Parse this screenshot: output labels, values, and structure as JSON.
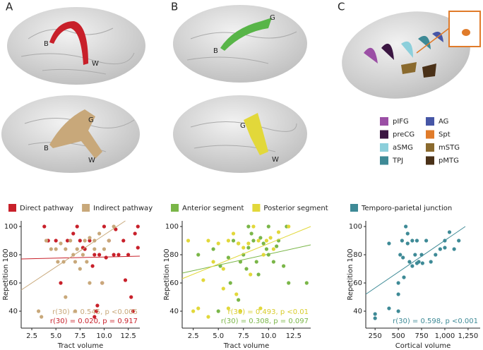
{
  "panels": {
    "letters": [
      "A",
      "B",
      "C"
    ],
    "brains": [
      {
        "labels": [
          "B",
          "W"
        ]
      },
      {
        "labels": [
          "G",
          "B",
          "W"
        ]
      },
      {
        "labels": [
          "B",
          "G"
        ]
      },
      {
        "labels": [
          "G",
          "W"
        ]
      }
    ],
    "regions": [
      {
        "label": "pIFG",
        "color": "#9b4fa5"
      },
      {
        "label": "preCG",
        "color": "#3b1642"
      },
      {
        "label": "aSMG",
        "color": "#8ccfdb"
      },
      {
        "label": "TPJ",
        "color": "#3e8a96"
      },
      {
        "label": "AG",
        "color": "#4656a6"
      },
      {
        "label": "Spt",
        "color": "#e07b2a"
      },
      {
        "label": "mSTG",
        "color": "#8a6a2e"
      },
      {
        "label": "pMTG",
        "color": "#4a3118"
      }
    ]
  },
  "chart_data": [
    {
      "type": "scatter",
      "x_label": "Tract volume",
      "y_label": "Repetition 100",
      "xlim": [
        1.4,
        13.7
      ],
      "ylim": [
        28,
        104
      ],
      "xticks": [
        2.5,
        {
          "value": 5,
          "label": "5.0"
        },
        7.5,
        {
          "value": 10,
          "label": "10.0"
        },
        12.5
      ],
      "yticks": [
        40,
        60,
        80,
        100
      ],
      "series": [
        {
          "name": "Direct pathway",
          "color": "#c8202a",
          "x": [
            3.8,
            4.2,
            5.5,
            7.2,
            7.5,
            8,
            8.5,
            9,
            9.5,
            9.8,
            10.2,
            11,
            11.5,
            12,
            12.5,
            13.2,
            13.5,
            13.5,
            12.8,
            13,
            9.2,
            9.3,
            9,
            10.5,
            6.2,
            8.8,
            10,
            11.2,
            7.8,
            5,
            12.2,
            6.8
          ],
          "values": [
            100,
            90,
            60,
            100,
            90,
            84,
            90,
            80,
            80,
            60,
            78,
            80,
            80,
            90,
            80,
            95,
            100,
            85,
            50,
            40,
            40,
            44,
            36,
            90,
            90,
            72,
            100,
            98,
            85,
            90,
            62,
            95
          ],
          "fit_x": [
            1.4,
            13.7
          ],
          "fit_y": [
            77,
            79
          ]
        },
        {
          "name": "Indirect pathway",
          "color": "#c8a87a",
          "x": [
            3.2,
            3.5,
            4,
            4.5,
            5,
            5.2,
            5.8,
            6,
            6.5,
            6.8,
            7,
            7.2,
            7.5,
            7.8,
            8,
            8.2,
            8.5,
            9,
            9.5,
            9.8,
            10,
            10.5,
            11,
            6,
            7,
            5.5,
            8.5,
            9
          ],
          "values": [
            40,
            36,
            90,
            84,
            84,
            75,
            75,
            84,
            90,
            80,
            75,
            84,
            70,
            80,
            90,
            75,
            60,
            90,
            95,
            60,
            84,
            90,
            100,
            50,
            40,
            88,
            92,
            84
          ],
          "fit_x": [
            1.4,
            12.2
          ],
          "fit_y": [
            55,
            104
          ]
        }
      ],
      "annotations": [
        {
          "text": "r(30) = 0.545, p <0.005",
          "color": "#c8a87a"
        },
        {
          "text": "r(30) = 0.020, p = 0.917",
          "color": "#c8202a"
        }
      ]
    },
    {
      "type": "scatter",
      "x_label": "Tract volume",
      "y_label": "Repetition 100",
      "xlim": [
        1.4,
        14.2
      ],
      "ylim": [
        28,
        104
      ],
      "xticks": [
        2.5,
        {
          "value": 5,
          "label": "5.0"
        },
        7.5,
        {
          "value": 10,
          "label": "10.0"
        },
        12.5
      ],
      "yticks": [
        40,
        60,
        80,
        100
      ],
      "series": [
        {
          "name": "Anterior segment",
          "color": "#7ab648",
          "x": [
            3,
            4.5,
            5.2,
            6,
            6.5,
            7,
            7.2,
            7.5,
            8,
            8.5,
            8.8,
            9.2,
            9.5,
            10,
            10,
            10.5,
            11,
            11.5,
            12,
            13.8,
            7,
            9,
            8,
            5,
            6.2,
            9.8,
            10.8,
            8.3,
            11.8,
            7.8
          ],
          "values": [
            80,
            84,
            72,
            78,
            90,
            88,
            75,
            80,
            85,
            90,
            75,
            92,
            88,
            100,
            80,
            75,
            90,
            72,
            60,
            60,
            48,
            66,
            100,
            40,
            60,
            84,
            86,
            95,
            100,
            70
          ],
          "fit_x": [
            1.4,
            14.2
          ],
          "fit_y": [
            67,
            87
          ]
        },
        {
          "name": "Posterior segment",
          "color": "#e2d83a",
          "x": [
            2,
            2.5,
            3,
            3.5,
            4,
            4.5,
            5,
            5.5,
            6,
            6.5,
            7,
            7.5,
            8,
            8.5,
            9,
            9.5,
            9.8,
            10.2,
            10.5,
            11,
            6,
            6.8,
            4,
            8.2,
            5.5,
            7.2,
            9.2,
            12
          ],
          "values": [
            90,
            40,
            42,
            62,
            90,
            75,
            88,
            70,
            90,
            95,
            88,
            85,
            88,
            100,
            90,
            80,
            90,
            92,
            84,
            96,
            42,
            52,
            36,
            66,
            56,
            40,
            42,
            100
          ],
          "fit_x": [
            1.4,
            14.2
          ],
          "fit_y": [
            63,
            100
          ]
        }
      ],
      "annotations": [
        {
          "text": "r(30) = 0.493, p <0.01",
          "color": "#d8cc2a"
        },
        {
          "text": "r(30) = 0.308, p = 0.097",
          "color": "#7ab648"
        }
      ]
    },
    {
      "type": "scatter",
      "x_label": "Cortical volume",
      "y_label": "Repetition 100",
      "xlim": [
        150,
        1380
      ],
      "ylim": [
        28,
        104
      ],
      "xticks": [
        250,
        500,
        750,
        {
          "value": 1000,
          "label": "1,000"
        },
        {
          "value": 1250,
          "label": "1,250"
        }
      ],
      "yticks": [
        40,
        60,
        80,
        100
      ],
      "series": [
        {
          "name": "Temporo-parietal junction",
          "color": "#3e8a96",
          "x": [
            250,
            250,
            400,
            500,
            500,
            500,
            520,
            540,
            550,
            580,
            600,
            600,
            620,
            650,
            650,
            680,
            700,
            700,
            720,
            750,
            760,
            800,
            850,
            900,
            950,
            1000,
            1050,
            1100,
            1150,
            1000,
            400,
            560
          ],
          "values": [
            38,
            35,
            42,
            60,
            52,
            40,
            80,
            90,
            78,
            100,
            95,
            88,
            75,
            90,
            72,
            80,
            90,
            74,
            75,
            80,
            74,
            90,
            75,
            80,
            84,
            90,
            96,
            84,
            90,
            85,
            88,
            64
          ],
          "fit_x": [
            150,
            1220
          ],
          "fit_y": [
            52,
            100
          ]
        }
      ],
      "annotations": [
        {
          "text": "r(30) = 0.598, p <0.001",
          "color": "#3e8a96"
        }
      ]
    }
  ]
}
